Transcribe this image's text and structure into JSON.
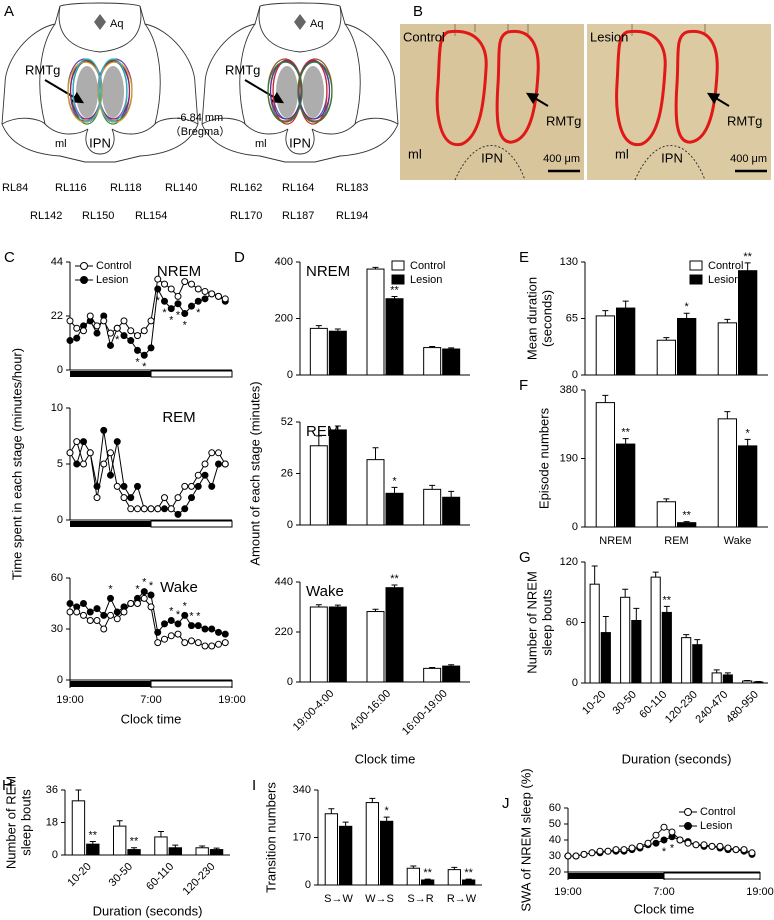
{
  "figure": {
    "A": {
      "label": "A",
      "aq": [
        "Aq",
        "Aq"
      ],
      "rmtg": [
        "RMTg",
        "RMTg"
      ],
      "ml": [
        "ml",
        "ml"
      ],
      "ipn": [
        "IPN",
        "IPN"
      ],
      "coord": "-6.84 mm",
      "bregma": "（Bregma）",
      "cases": [
        {
          "name": "RL84",
          "color": "#d63aa0"
        },
        {
          "name": "RL116",
          "color": "#3b4fc4"
        },
        {
          "name": "RL118",
          "color": "#7a3aa8"
        },
        {
          "name": "RL140",
          "color": "#3a8a3a"
        },
        {
          "name": "RL142",
          "color": "#8b2252"
        },
        {
          "name": "RL150",
          "color": "#d4a017"
        },
        {
          "name": "RL154",
          "color": "#2bb5d4"
        },
        {
          "name": "RL162",
          "color": "#2e5fb8"
        },
        {
          "name": "RL164",
          "color": "#4a6fa5"
        },
        {
          "name": "RL183",
          "color": "#a0522d"
        },
        {
          "name": "RL170",
          "color": "#d62728"
        },
        {
          "name": "RL187",
          "color": "#6a2c8e"
        },
        {
          "name": "RL194",
          "color": "#2e7d32"
        }
      ]
    },
    "B": {
      "label": "B",
      "images": [
        {
          "title": "Control",
          "rmtg": "RMTg",
          "ml": "ml",
          "ipn": "IPN",
          "scale": "400 μm"
        },
        {
          "title": "Lesion",
          "rmtg": "RMTg",
          "ml": "ml",
          "ipn": "IPN",
          "scale": "400 μm"
        }
      ]
    }
  },
  "chart_data": [
    {
      "type": "line",
      "panel": "C",
      "title": "NREM",
      "legend": "upper left",
      "x": [
        0,
        1,
        2,
        3,
        4,
        5,
        6,
        7,
        8,
        9,
        10,
        11,
        12,
        13,
        14,
        15,
        16,
        17,
        18,
        19,
        20,
        21,
        22,
        23
      ],
      "xlim": [
        0,
        24
      ],
      "dark_phase": [
        0,
        12
      ],
      "ylim": [
        0,
        44
      ],
      "yticks": [
        0,
        22,
        44
      ],
      "series": [
        {
          "name": "Control",
          "color": "#ffffff",
          "values": [
            20,
            17,
            16,
            22,
            18,
            20,
            15,
            17,
            20,
            16,
            14,
            16,
            20,
            37,
            35,
            33,
            30,
            36,
            35,
            33,
            32,
            31,
            30,
            29
          ]
        },
        {
          "name": "Lesion",
          "color": "#000000",
          "values": [
            12,
            13,
            18,
            20,
            15,
            22,
            10,
            17,
            14,
            12,
            8,
            6,
            9,
            33,
            28,
            25,
            27,
            23,
            26,
            28,
            29,
            31,
            30,
            28
          ]
        }
      ],
      "annotations": [
        {
          "x": 7,
          "text": "*"
        },
        {
          "x": 10,
          "text": "*"
        },
        {
          "x": 11,
          "text": "*"
        },
        {
          "x": 13,
          "text": "*"
        },
        {
          "x": 14,
          "text": "*"
        },
        {
          "x": 15,
          "text": "*"
        },
        {
          "x": 16,
          "text": "*"
        },
        {
          "x": 17,
          "text": "*"
        },
        {
          "x": 19,
          "text": "*"
        }
      ]
    },
    {
      "type": "line",
      "title": "REM",
      "ylabel": "Time spent in each stage (minutes/hour)",
      "x": [
        0,
        1,
        2,
        3,
        4,
        5,
        6,
        7,
        8,
        9,
        10,
        11,
        12,
        13,
        14,
        15,
        16,
        17,
        18,
        19,
        20,
        21,
        22,
        23
      ],
      "xlim": [
        0,
        24
      ],
      "dark_phase": [
        0,
        12
      ],
      "ylim": [
        0,
        10
      ],
      "yticks": [
        0,
        5,
        10
      ],
      "series": [
        {
          "name": "Control",
          "color": "#ffffff",
          "values": [
            6,
            7,
            5,
            6,
            2,
            5,
            6,
            3,
            2,
            1,
            1,
            1,
            1,
            1,
            2,
            1,
            2,
            3,
            3,
            4,
            5,
            6,
            6,
            5
          ]
        },
        {
          "name": "Lesion",
          "color": "#000000",
          "values": [
            6,
            5,
            7,
            6,
            3,
            8,
            4,
            7,
            3,
            2,
            3,
            1,
            1,
            1,
            1,
            1,
            0.5,
            1,
            2,
            3,
            4,
            3,
            5,
            5
          ]
        }
      ]
    },
    {
      "type": "line",
      "title": "Wake",
      "xlabel": "Clock time",
      "x": [
        0,
        1,
        2,
        3,
        4,
        5,
        6,
        7,
        8,
        9,
        10,
        11,
        12,
        13,
        14,
        15,
        16,
        17,
        18,
        19,
        20,
        21,
        22,
        23
      ],
      "xlim": [
        0,
        24
      ],
      "dark_phase": [
        0,
        12
      ],
      "xticks": [
        {
          "value": 0,
          "label": "19:00"
        },
        {
          "value": 12,
          "label": "7:00"
        },
        {
          "value": 24,
          "label": "19:00"
        }
      ],
      "ylim": [
        0,
        60
      ],
      "yticks": [
        0,
        30,
        60
      ],
      "series": [
        {
          "name": "Control",
          "color": "#ffffff",
          "values": [
            40,
            40,
            38,
            35,
            35,
            30,
            38,
            36,
            40,
            45,
            45,
            48,
            43,
            22,
            24,
            26,
            27,
            22,
            23,
            22,
            20,
            20,
            21,
            22
          ]
        },
        {
          "name": "Lesion",
          "color": "#000000",
          "values": [
            45,
            43,
            45,
            40,
            42,
            38,
            48,
            40,
            43,
            45,
            48,
            52,
            50,
            28,
            33,
            35,
            33,
            38,
            32,
            32,
            30,
            30,
            28,
            27
          ]
        }
      ],
      "annotations": [
        {
          "x": 6,
          "text": "*"
        },
        {
          "x": 10,
          "text": "*"
        },
        {
          "x": 11,
          "text": "*"
        },
        {
          "x": 12,
          "text": "*"
        },
        {
          "x": 15,
          "text": "*"
        },
        {
          "x": 16,
          "text": "*"
        },
        {
          "x": 17,
          "text": "*"
        },
        {
          "x": 18,
          "text": "*"
        },
        {
          "x": 19,
          "text": "*"
        }
      ]
    },
    {
      "type": "bar",
      "panel": "D",
      "title": "NREM",
      "legend": "upper right",
      "categories": [
        null,
        null,
        null
      ],
      "ylim": [
        0,
        400
      ],
      "yticks": [
        0,
        200,
        400
      ],
      "series": [
        {
          "name": "Control",
          "color": "#ffffff",
          "values": [
            165,
            375,
            97
          ],
          "errors": [
            10,
            6,
            4
          ]
        },
        {
          "name": "Lesion",
          "color": "#000000",
          "values": [
            155,
            270,
            92
          ],
          "errors": [
            8,
            8,
            4
          ]
        }
      ],
      "annotations": [
        {
          "category": 1,
          "series": 1,
          "text": "**"
        }
      ]
    },
    {
      "type": "bar",
      "title": "REM",
      "ylabel": "Amount of each stage (minutes)",
      "categories": [
        null,
        null,
        null
      ],
      "ylim": [
        0,
        52
      ],
      "yticks": [
        0,
        26,
        52
      ],
      "series": [
        {
          "name": "Control",
          "color": "#ffffff",
          "values": [
            40,
            33,
            18
          ],
          "errors": [
            5,
            6,
            2
          ]
        },
        {
          "name": "Lesion",
          "color": "#000000",
          "values": [
            48,
            16,
            14
          ],
          "errors": [
            2,
            3,
            3
          ]
        }
      ],
      "annotations": [
        {
          "category": 1,
          "series": 1,
          "text": "*"
        }
      ]
    },
    {
      "type": "bar",
      "title": "Wake",
      "xlabel": "Clock time",
      "categories": [
        "19:00-4:00",
        "4:00-16:00",
        "16:00-19:00"
      ],
      "ylim": [
        0,
        440
      ],
      "yticks": [
        0,
        220,
        440
      ],
      "series": [
        {
          "name": "Control",
          "color": "#ffffff",
          "values": [
            330,
            310,
            60
          ],
          "errors": [
            10,
            10,
            4
          ]
        },
        {
          "name": "Lesion",
          "color": "#000000",
          "values": [
            330,
            415,
            70
          ],
          "errors": [
            8,
            12,
            6
          ]
        }
      ],
      "annotations": [
        {
          "category": 1,
          "series": 1,
          "text": "**"
        }
      ]
    },
    {
      "type": "bar",
      "panel": "E",
      "legend": "upper right",
      "ylabel": [
        "Mean duration",
        "(seconds)"
      ],
      "categories": [
        null,
        null,
        null
      ],
      "ylim": [
        0,
        130
      ],
      "yticks": [
        0,
        65,
        130
      ],
      "series": [
        {
          "name": "Control",
          "color": "#ffffff",
          "values": [
            68,
            40,
            60
          ],
          "errors": [
            6,
            3,
            4
          ]
        },
        {
          "name": "Lesion",
          "color": "#000000",
          "values": [
            77,
            65,
            120
          ],
          "errors": [
            8,
            6,
            9
          ]
        }
      ],
      "annotations": [
        {
          "category": 1,
          "series": 1,
          "text": "*"
        },
        {
          "category": 2,
          "series": 1,
          "text": "**"
        }
      ]
    },
    {
      "type": "bar",
      "panel": "F",
      "ylabel": "Episode numbers",
      "categories": [
        "NREM",
        "REM",
        "Wake"
      ],
      "ylim": [
        0,
        380
      ],
      "yticks": [
        0,
        190,
        380
      ],
      "series": [
        {
          "name": "Control",
          "color": "#ffffff",
          "values": [
            345,
            70,
            300
          ],
          "errors": [
            20,
            8,
            20
          ]
        },
        {
          "name": "Lesion",
          "color": "#000000",
          "values": [
            230,
            12,
            225
          ],
          "errors": [
            15,
            3,
            18
          ]
        }
      ],
      "annotations": [
        {
          "category": 0,
          "series": 1,
          "text": "**"
        },
        {
          "category": 1,
          "series": 1,
          "text": "**"
        },
        {
          "category": 2,
          "series": 1,
          "text": "*"
        }
      ]
    },
    {
      "type": "bar",
      "panel": "G",
      "ylabel": [
        "Number of NREM",
        "sleep bouts"
      ],
      "xlabel": "Duration (seconds)",
      "categories": [
        "10-20",
        "30-50",
        "60-110",
        "120-230",
        "240-470",
        "480-950"
      ],
      "ylim": [
        0,
        120
      ],
      "yticks": [
        0,
        60,
        120
      ],
      "series": [
        {
          "name": "Control",
          "color": "#ffffff",
          "values": [
            98,
            85,
            105,
            45,
            10,
            2
          ],
          "errors": [
            18,
            8,
            5,
            3,
            3,
            0.5
          ]
        },
        {
          "name": "Lesion",
          "color": "#000000",
          "values": [
            50,
            62,
            70,
            38,
            8,
            1
          ],
          "errors": [
            16,
            12,
            6,
            5,
            2,
            0.5
          ]
        }
      ],
      "annotations": [
        {
          "category": 2,
          "series": 1,
          "text": "**"
        }
      ]
    },
    {
      "type": "bar",
      "panel": "H",
      "ylabel": [
        "Number of REM",
        "sleep bouts"
      ],
      "xlabel": "Duration (seconds)",
      "categories": [
        "10-20",
        "30-50",
        "60-110",
        "120-230"
      ],
      "ylim": [
        0,
        36
      ],
      "yticks": [
        0,
        18,
        36
      ],
      "series": [
        {
          "name": "Control",
          "color": "#ffffff",
          "values": [
            30,
            16,
            10,
            4
          ],
          "errors": [
            6,
            3,
            3,
            1
          ]
        },
        {
          "name": "Lesion",
          "color": "#000000",
          "values": [
            6,
            3,
            4,
            3
          ],
          "errors": [
            1.5,
            1,
            1.5,
            0.8
          ]
        }
      ],
      "annotations": [
        {
          "category": 0,
          "series": 1,
          "text": "**"
        },
        {
          "category": 1,
          "series": 1,
          "text": "**"
        }
      ]
    },
    {
      "type": "bar",
      "panel": "I",
      "ylabel": "Transition numbers",
      "categories": [
        "S→W",
        "W→S",
        "S→R",
        "R→W"
      ],
      "ylim": [
        0,
        340
      ],
      "yticks": [
        0,
        170,
        340
      ],
      "series": [
        {
          "name": "Control",
          "color": "#ffffff",
          "values": [
            255,
            295,
            60,
            55
          ],
          "errors": [
            18,
            15,
            8,
            8
          ]
        },
        {
          "name": "Lesion",
          "color": "#000000",
          "values": [
            210,
            228,
            18,
            18
          ],
          "errors": [
            15,
            15,
            3,
            3
          ]
        }
      ],
      "annotations": [
        {
          "category": 1,
          "series": 1,
          "text": "*"
        },
        {
          "category": 2,
          "series": 1,
          "text": "**"
        },
        {
          "category": 3,
          "series": 1,
          "text": "**"
        }
      ]
    },
    {
      "type": "line",
      "panel": "J",
      "legend": "upper right",
      "ylabel": "SWA of NREM sleep (%)",
      "xlabel": "Clock time",
      "x": [
        0,
        1,
        2,
        3,
        4,
        5,
        6,
        7,
        8,
        9,
        10,
        11,
        12,
        13,
        14,
        15,
        16,
        17,
        18,
        19,
        20,
        21,
        22,
        23
      ],
      "xlim": [
        0,
        24
      ],
      "dark_phase": [
        0,
        12
      ],
      "xticks": [
        {
          "value": 0,
          "label": "19:00"
        },
        {
          "value": 12,
          "label": "7:00"
        },
        {
          "value": 24,
          "label": "19:00"
        }
      ],
      "ylim": [
        20,
        60
      ],
      "yticks": [
        20,
        30,
        40,
        50,
        60
      ],
      "series": [
        {
          "name": "Control",
          "color": "#ffffff",
          "values": [
            30,
            30,
            31,
            32,
            33,
            33,
            34,
            34,
            35,
            36,
            38,
            43,
            48,
            45,
            40,
            38,
            37,
            37,
            36,
            36,
            35,
            34,
            34,
            32
          ]
        },
        {
          "name": "Lesion",
          "color": "#000000",
          "values": [
            30,
            30,
            31,
            32,
            32,
            33,
            33,
            33,
            34,
            35,
            37,
            38,
            40,
            42,
            40,
            39,
            37,
            36,
            36,
            35,
            34,
            34,
            33,
            31
          ]
        }
      ],
      "annotations": [
        {
          "x": 12,
          "text": "*"
        },
        {
          "x": 13,
          "text": "*"
        }
      ]
    }
  ]
}
